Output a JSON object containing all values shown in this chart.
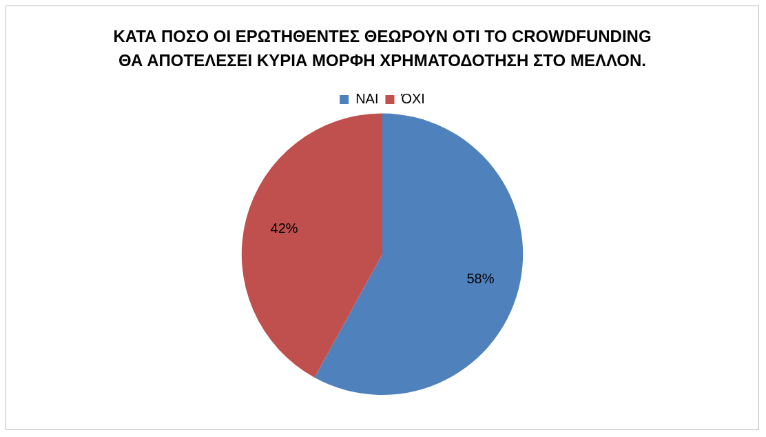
{
  "chart_data": {
    "type": "pie",
    "title": "ΚΑΤΑ ΠΟΣΟ ΟΙ ΕΡΩΤΗΘΕΝΤΕΣ ΘΕΩΡΟΥΝ ΟΤΙ ΤΟ CROWDFUNDING\nΘΑ ΑΠΟΤΕΛΕΣΕΙ ΚΥΡΙΑ ΜΟΡΦΗ ΧΡΗΜΑΤΟΔΟΤΗΣΗ ΣΤΟ ΜΕΛΛΟΝ.",
    "categories": [
      "ΝΑΙ",
      "ΌΧΙ"
    ],
    "values": [
      58,
      42
    ],
    "colors": [
      "#4f81bd",
      "#c0504d"
    ],
    "value_labels": [
      "58%",
      "42%"
    ],
    "legend": "top"
  }
}
